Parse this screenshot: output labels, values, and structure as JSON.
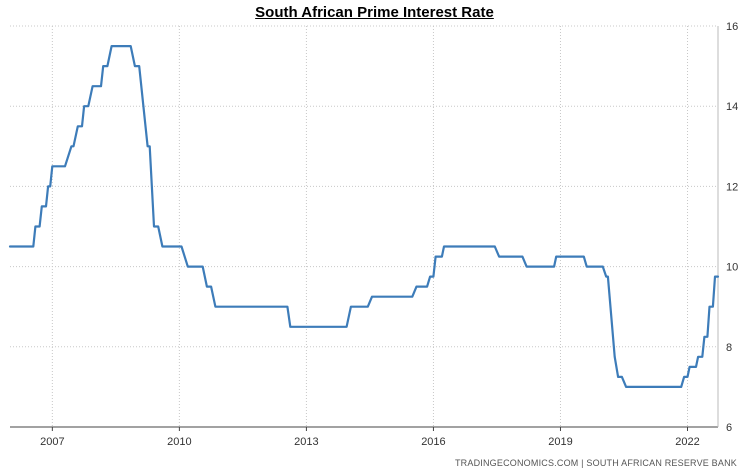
{
  "chart_data": {
    "type": "line",
    "title": "South African Prime Interest Rate",
    "xlabel": "",
    "ylabel": "",
    "ylim": [
      6,
      16
    ],
    "xlim": [
      2006.0,
      2022.72
    ],
    "y_ticks": [
      6,
      8,
      10,
      12,
      14,
      16
    ],
    "x_ticks": [
      2007,
      2010,
      2013,
      2016,
      2019,
      2022
    ],
    "x_tick_labels": [
      "2007",
      "2010",
      "2013",
      "2016",
      "2019",
      "2022"
    ],
    "y_axis_side": "right",
    "grid": true,
    "color": "#3d7cb9",
    "series": [
      {
        "values": [
          [
            2006.0,
            10.5
          ],
          [
            2006.55,
            10.5
          ],
          [
            2006.6,
            11.0
          ],
          [
            2006.7,
            11.0
          ],
          [
            2006.75,
            11.5
          ],
          [
            2006.85,
            11.5
          ],
          [
            2006.9,
            12.0
          ],
          [
            2006.95,
            12.0
          ],
          [
            2007.0,
            12.5
          ],
          [
            2007.3,
            12.5
          ],
          [
            2007.45,
            13.0
          ],
          [
            2007.5,
            13.0
          ],
          [
            2007.6,
            13.5
          ],
          [
            2007.7,
            13.5
          ],
          [
            2007.75,
            14.0
          ],
          [
            2007.85,
            14.0
          ],
          [
            2007.95,
            14.5
          ],
          [
            2008.15,
            14.5
          ],
          [
            2008.2,
            15.0
          ],
          [
            2008.3,
            15.0
          ],
          [
            2008.4,
            15.5
          ],
          [
            2008.85,
            15.5
          ],
          [
            2008.95,
            15.0
          ],
          [
            2009.05,
            15.0
          ],
          [
            2009.25,
            13.0
          ],
          [
            2009.3,
            13.0
          ],
          [
            2009.4,
            11.0
          ],
          [
            2009.5,
            11.0
          ],
          [
            2009.6,
            10.5
          ],
          [
            2010.05,
            10.5
          ],
          [
            2010.2,
            10.0
          ],
          [
            2010.55,
            10.0
          ],
          [
            2010.65,
            9.5
          ],
          [
            2010.75,
            9.5
          ],
          [
            2010.85,
            9.0
          ],
          [
            2012.55,
            9.0
          ],
          [
            2012.62,
            8.5
          ],
          [
            2013.95,
            8.5
          ],
          [
            2014.05,
            9.0
          ],
          [
            2014.45,
            9.0
          ],
          [
            2014.55,
            9.25
          ],
          [
            2015.5,
            9.25
          ],
          [
            2015.6,
            9.5
          ],
          [
            2015.85,
            9.5
          ],
          [
            2015.92,
            9.75
          ],
          [
            2016.0,
            9.75
          ],
          [
            2016.05,
            10.25
          ],
          [
            2016.2,
            10.25
          ],
          [
            2016.25,
            10.5
          ],
          [
            2017.45,
            10.5
          ],
          [
            2017.55,
            10.25
          ],
          [
            2018.1,
            10.25
          ],
          [
            2018.2,
            10.0
          ],
          [
            2018.85,
            10.0
          ],
          [
            2018.9,
            10.25
          ],
          [
            2019.55,
            10.25
          ],
          [
            2019.62,
            10.0
          ],
          [
            2020.0,
            10.0
          ],
          [
            2020.08,
            9.75
          ],
          [
            2020.12,
            9.75
          ],
          [
            2020.2,
            8.75
          ],
          [
            2020.28,
            7.75
          ],
          [
            2020.36,
            7.25
          ],
          [
            2020.45,
            7.25
          ],
          [
            2020.55,
            7.0
          ],
          [
            2021.85,
            7.0
          ],
          [
            2021.92,
            7.25
          ],
          [
            2022.0,
            7.25
          ],
          [
            2022.05,
            7.5
          ],
          [
            2022.2,
            7.5
          ],
          [
            2022.25,
            7.75
          ],
          [
            2022.35,
            7.75
          ],
          [
            2022.4,
            8.25
          ],
          [
            2022.47,
            8.25
          ],
          [
            2022.52,
            9.0
          ],
          [
            2022.6,
            9.0
          ],
          [
            2022.65,
            9.75
          ],
          [
            2022.72,
            9.75
          ]
        ]
      }
    ]
  },
  "footer": {
    "source_text": "TRADINGECONOMICS.COM  |  SOUTH AFRICAN RESERVE BANK"
  }
}
